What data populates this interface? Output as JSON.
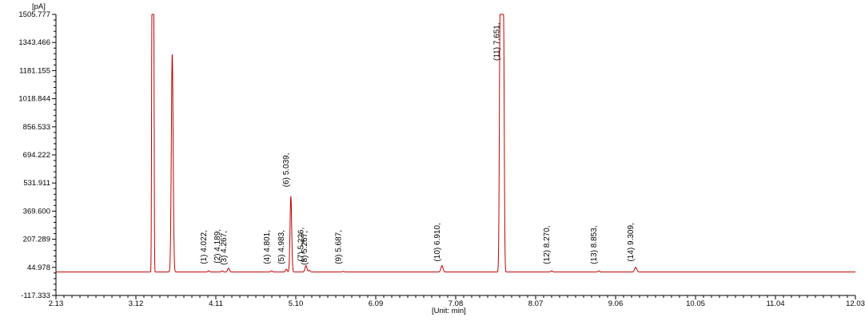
{
  "chart_data": {
    "type": "line",
    "y_unit_label": "[pA]",
    "x_unit_label": "[Unit: min]",
    "xlim": [
      2.13,
      12.03
    ],
    "ylim": [
      -117.333,
      1505.777
    ],
    "x_ticks": [
      "2.13",
      "3.12",
      "4.11",
      "5.10",
      "6.09",
      "7.08",
      "8.07",
      "9.06",
      "10.05",
      "11.04",
      "12.03"
    ],
    "y_ticks": [
      "-117.333",
      "44.978",
      "207.289",
      "369.600",
      "531.911",
      "694.222",
      "856.533",
      "1018.844",
      "1181.155",
      "1343.466",
      "1505.777"
    ],
    "line_color": "#c00000",
    "baseline": 18,
    "peaks": [
      {
        "rt": 3.33,
        "height": 1505.777,
        "width": 0.013,
        "flat_top": true
      },
      {
        "rt": 3.57,
        "height": 1275,
        "width": 0.011,
        "flat_top": false
      },
      {
        "rt": 3.6,
        "height": 18,
        "width": 0.006,
        "flat_top": false
      },
      {
        "rt": 4.022,
        "height": 25,
        "width": 0.01,
        "flat_top": false
      },
      {
        "rt": 4.189,
        "height": 25,
        "width": 0.01,
        "flat_top": false
      },
      {
        "rt": 4.267,
        "height": 40,
        "width": 0.012,
        "flat_top": false
      },
      {
        "rt": 4.801,
        "height": 25,
        "width": 0.01,
        "flat_top": false
      },
      {
        "rt": 4.983,
        "height": 35,
        "width": 0.01,
        "flat_top": false
      },
      {
        "rt": 5.039,
        "height": 455,
        "width": 0.01,
        "flat_top": false
      },
      {
        "rt": 5.226,
        "height": 55,
        "width": 0.012,
        "flat_top": false
      },
      {
        "rt": 5.267,
        "height": 28,
        "width": 0.01,
        "flat_top": false
      },
      {
        "rt": 5.687,
        "height": 22,
        "width": 0.01,
        "flat_top": false
      },
      {
        "rt": 6.91,
        "height": 55,
        "width": 0.013,
        "flat_top": false
      },
      {
        "rt": 7.651,
        "height": 1505.777,
        "width": 0.024,
        "flat_top": true
      },
      {
        "rt": 8.27,
        "height": 25,
        "width": 0.01,
        "flat_top": false
      },
      {
        "rt": 8.853,
        "height": 25,
        "width": 0.01,
        "flat_top": false
      },
      {
        "rt": 9.309,
        "height": 45,
        "width": 0.014,
        "flat_top": false
      }
    ],
    "peak_labels": [
      {
        "text": "(1) 4.022,",
        "rt": 4.022,
        "level": 44.978
      },
      {
        "text": "(2) 4.189,",
        "rt": 4.189,
        "level": 50
      },
      {
        "text": "(3) 4.267,",
        "rt": 4.267,
        "level": 40
      },
      {
        "text": "(4) 4.801,",
        "rt": 4.801,
        "level": 44.978
      },
      {
        "text": "(5) 4.983,",
        "rt": 4.983,
        "level": 44.978
      },
      {
        "text": "(6) 5.039,",
        "rt": 5.039,
        "level": 490
      },
      {
        "text": "(7) 5.226,",
        "rt": 5.226,
        "level": 60
      },
      {
        "text": "(8) 5.267,",
        "rt": 5.267,
        "level": 40
      },
      {
        "text": "(9) 5.687,",
        "rt": 5.687,
        "level": 44.978
      },
      {
        "text": "(10) 6.910,",
        "rt": 6.91,
        "level": 60
      },
      {
        "text": "(11) 7.651,",
        "rt": 7.651,
        "level": 1220
      },
      {
        "text": "(12) 8.270,",
        "rt": 8.27,
        "level": 44.978
      },
      {
        "text": "(13) 8.853,",
        "rt": 8.853,
        "level": 44.978
      },
      {
        "text": "(14) 9.309,",
        "rt": 9.309,
        "level": 60
      }
    ]
  }
}
